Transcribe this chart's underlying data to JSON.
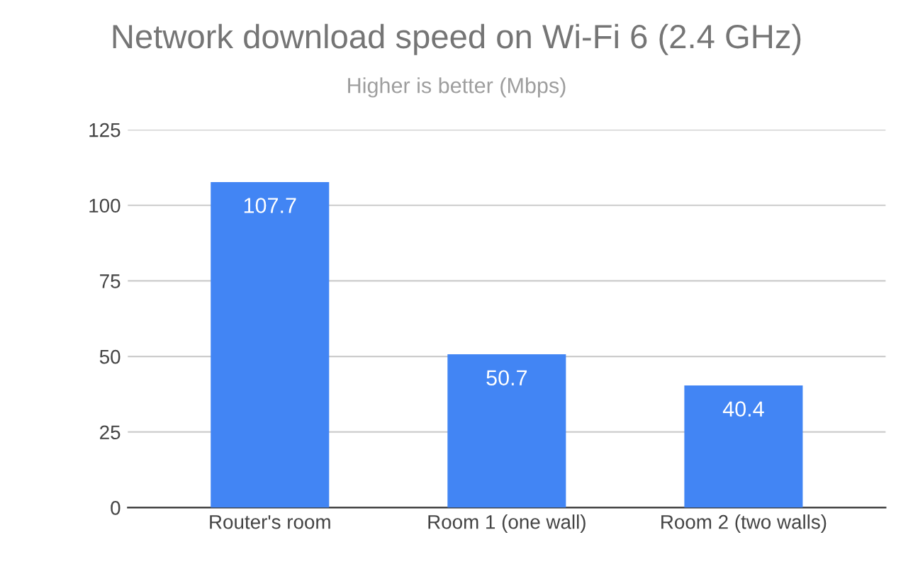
{
  "chart_data": {
    "type": "bar",
    "title": "Network download speed on Wi-Fi 6 (2.4 GHz)",
    "subtitle": "Higher is better (Mbps)",
    "categories": [
      "Router's room",
      "Room 1 (one wall)",
      "Room 2 (two walls)"
    ],
    "values": [
      107.7,
      50.7,
      40.4
    ],
    "color": "#4285f4",
    "ylim": [
      0,
      125
    ],
    "yticks": [
      0,
      25,
      50,
      75,
      100,
      125
    ],
    "grid": "y",
    "data_labels": true
  }
}
